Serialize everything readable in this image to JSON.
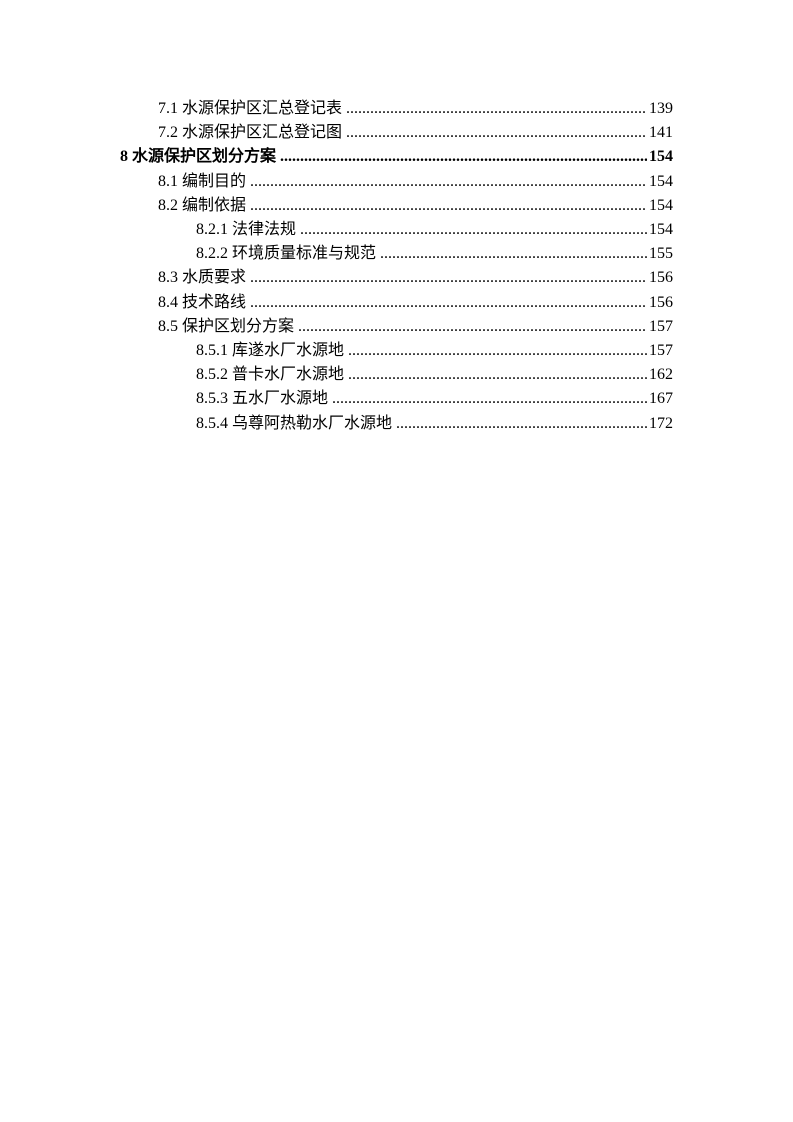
{
  "toc": [
    {
      "level": 2,
      "label": "7.1 水源保护区汇总登记表",
      "page": "139"
    },
    {
      "level": 2,
      "label": "7.2 水源保护区汇总登记图",
      "page": "141"
    },
    {
      "level": 1,
      "label": "8 水源保护区划分方案",
      "page": "154"
    },
    {
      "level": 2,
      "label": "8.1 编制目的",
      "page": "154"
    },
    {
      "level": 2,
      "label": "8.2 编制依据",
      "page": "154"
    },
    {
      "level": 3,
      "label": "8.2.1  法律法规",
      "page": "154"
    },
    {
      "level": 3,
      "label": "8.2.2 环境质量标准与规范",
      "page": "155"
    },
    {
      "level": 2,
      "label": "8.3 水质要求",
      "page": "156"
    },
    {
      "level": 2,
      "label": "8.4 技术路线",
      "page": "156"
    },
    {
      "level": 2,
      "label": "8.5 保护区划分方案",
      "page": "157"
    },
    {
      "level": 3,
      "label": "8.5.1 库遂水厂水源地",
      "page": "157"
    },
    {
      "level": 3,
      "label": "8.5.2 普卡水厂水源地",
      "page": "162"
    },
    {
      "level": 3,
      "label": "8.5.3 五水厂水源地",
      "page": "167"
    },
    {
      "level": 3,
      "label": "8.5.4 乌尊阿热勒水厂水源地",
      "page": "172"
    }
  ]
}
